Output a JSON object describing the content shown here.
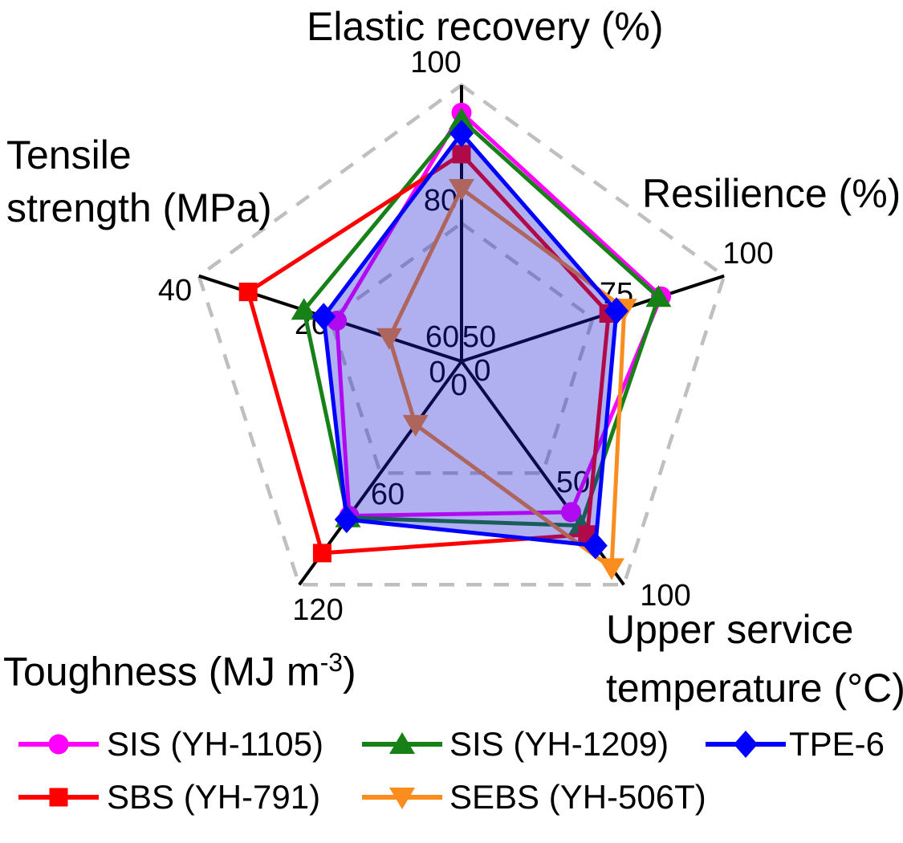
{
  "chart_data": {
    "type": "radar",
    "title": "",
    "background": "#FFFFFF",
    "grid": {
      "color": "#BFBFBF",
      "style": "dashed",
      "levels": [
        0.5,
        1.0
      ]
    },
    "spoke_color": "#000000",
    "axes": [
      {
        "id": "elastic_recovery",
        "label": "Elastic recovery (%)",
        "min": 60,
        "mid": 80,
        "max": 100,
        "ticks": [
          "60",
          "80",
          "100"
        ]
      },
      {
        "id": "resilience",
        "label": "Resilience (%)",
        "min": 50,
        "mid": 75,
        "max": 100,
        "ticks": [
          "50",
          "75",
          "100"
        ]
      },
      {
        "id": "upper_service_temperature",
        "label": "Upper service temperature (°C)",
        "label_lines": [
          "Upper service",
          "temperature (°C)"
        ],
        "min": 0,
        "mid": 50,
        "max": 100,
        "ticks": [
          "0",
          "50",
          "100"
        ]
      },
      {
        "id": "toughness",
        "label": "Toughness (MJ m⁻³)",
        "label_prefix": "Toughness (MJ m",
        "label_sup": "-3",
        "label_suffix": ")",
        "min": 0,
        "mid": 60,
        "max": 120,
        "ticks": [
          "0",
          "60",
          "120"
        ]
      },
      {
        "id": "tensile_strength",
        "label": "Tensile strength (MPa)",
        "label_lines": [
          "Tensile",
          "strength (MPa)"
        ],
        "min": 0,
        "mid": 20,
        "max": 40,
        "ticks": [
          "0",
          "20",
          "40"
        ]
      }
    ],
    "series": [
      {
        "name": "SIS (YH-1105)",
        "color": "#FF00FF",
        "marker": "circle",
        "values": [
          96,
          88,
          67.5,
          83,
          19
        ]
      },
      {
        "name": "SIS (YH-1209)",
        "color": "#178017",
        "marker": "triangle-up",
        "values": [
          95,
          87.5,
          73.5,
          84,
          24
        ]
      },
      {
        "name": "TPE-6",
        "color": "#0000FF",
        "marker": "diamond",
        "filled": true,
        "fill_color": "rgba(30,30,215,0.35)",
        "values": [
          93,
          79.5,
          82.5,
          85,
          21
        ]
      },
      {
        "name": "SBS (YH-791)",
        "color": "#FF0000",
        "marker": "square",
        "values": [
          90,
          78,
          77.5,
          103,
          32.5
        ]
      },
      {
        "name": "SEBS (YH-506T)",
        "color": "#FB8C1E",
        "marker": "triangle-down",
        "values": [
          85,
          81,
          92.5,
          34,
          11
        ]
      }
    ]
  }
}
